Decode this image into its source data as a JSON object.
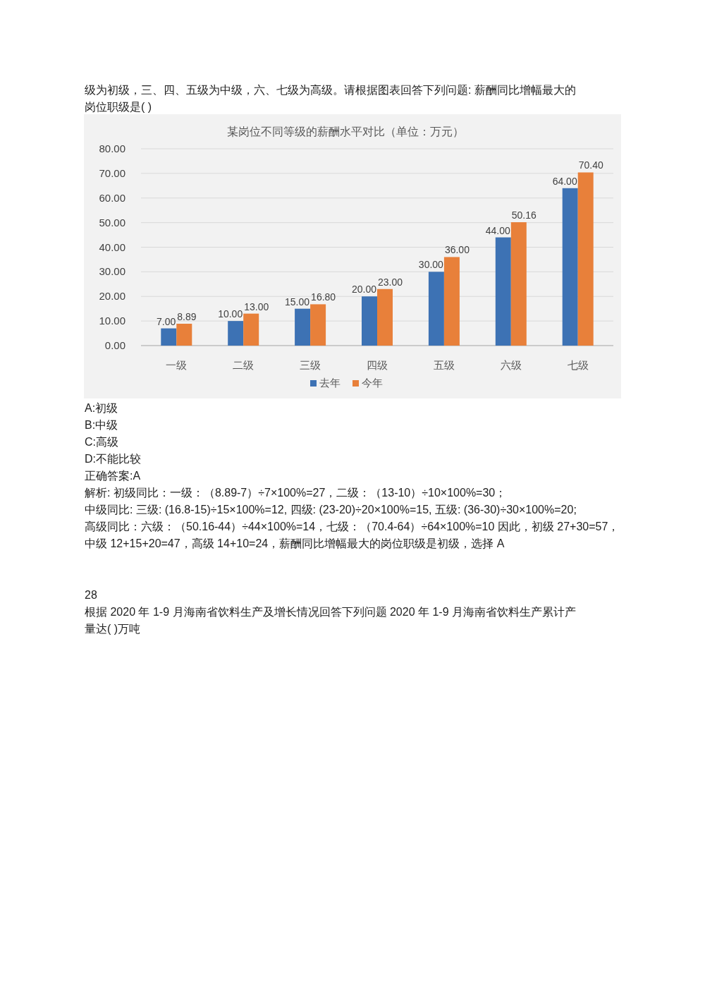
{
  "chart_data": {
    "type": "bar",
    "title": "某岗位不同等级的薪酬水平对比（单位：万元）",
    "categories": [
      "一级",
      "二级",
      "三级",
      "四级",
      "五级",
      "六级",
      "七级"
    ],
    "series": [
      {
        "name": "去年",
        "color": "#3d72b4",
        "values": [
          7,
          10,
          15,
          20,
          30,
          44,
          64
        ],
        "value_labels": [
          "7.00",
          "10.00",
          "15.00",
          "20.00",
          "30.00",
          "44.00",
          "64.00"
        ]
      },
      {
        "name": "今年",
        "color": "#e8803a",
        "values": [
          8.89,
          13,
          16.8,
          23,
          36,
          50.16,
          70.4
        ],
        "value_labels": [
          "8.89",
          "13.00",
          "16.80",
          "23.00",
          "36.00",
          "50.16",
          "70.40"
        ]
      }
    ],
    "ylim": [
      0,
      80
    ],
    "yticks": [
      {
        "value": 0,
        "label": "0.00"
      },
      {
        "value": 10,
        "label": "10.00"
      },
      {
        "value": 20,
        "label": "20.00"
      },
      {
        "value": 30,
        "label": "30.00"
      },
      {
        "value": 40,
        "label": "40.00"
      },
      {
        "value": 50,
        "label": "50.00"
      },
      {
        "value": 60,
        "label": "60.00"
      },
      {
        "value": 70,
        "label": "70.00"
      },
      {
        "value": 80,
        "label": "80.00"
      }
    ],
    "grid": "y",
    "legend": "bottom",
    "annotations": [
      "级为初级，三、四、五级为中级，六、七级为高级。请根据图表回答下列问题: 薪酬同比增幅最大的",
      "岗位职级是( )",
      "A:初级",
      "B:中级",
      "C:高级",
      "D:不能比较",
      "正确答案:A",
      "解析: 初级同比：一级：（8.89-7）÷7×100%=27，二级：（13-10）÷10×100%=30；",
      "中级同比: 三级: (16.8-15)÷15×100%=12, 四级: (23-20)÷20×100%=15, 五级: (36-30)÷30×100%=20;",
      "高级同比：六级：（50.16-44）÷44×100%=14，七级：（70.4-64）÷64×100%=10 因此，初级 27+30=57，",
      "中级 12+15+20=47，高级 14+10=24，薪酬同比增幅最大的岗位职级是初级，选择 A",
      "28",
      "根据 2020 年 1-9 月海南省饮料生产及增长情况回答下列问题 2020 年 1-9 月海南省饮料生产累计产",
      "量达( )万吨"
    ]
  }
}
